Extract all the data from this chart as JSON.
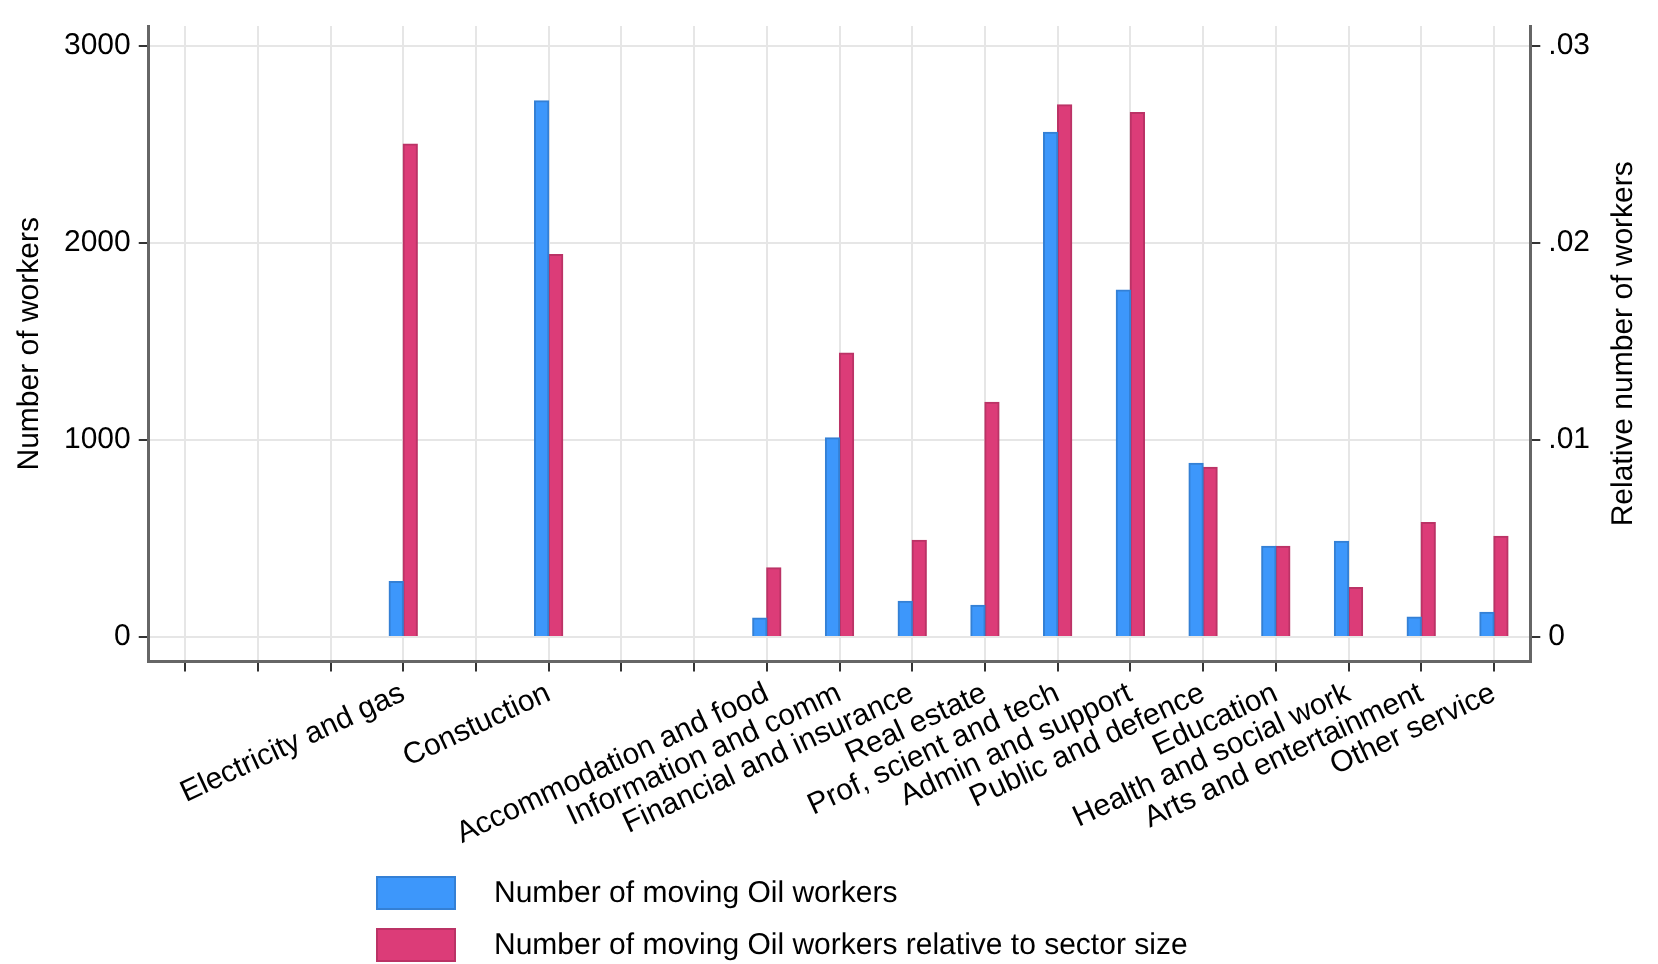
{
  "chart_data": {
    "type": "bar",
    "xlabel": null,
    "ylabel": "Number of workers",
    "y2label": "Relative number of workers",
    "categories": [
      null,
      null,
      null,
      "Electricity and gas",
      null,
      "Constuction",
      null,
      null,
      "Accommodation and food",
      "Information and comm",
      "Financial and insurance",
      "Real estate",
      "Prof, scient and tech",
      "Admin and support",
      "Public and defence",
      "Education",
      "Health and social work",
      "Arts and entertainment",
      "Other service"
    ],
    "series": [
      {
        "name": "Number of moving Oil workers",
        "color": "#3d97fb",
        "values": [
          null,
          null,
          null,
          280,
          null,
          2720,
          null,
          null,
          95,
          1010,
          180,
          160,
          2560,
          1760,
          880,
          460,
          485,
          100,
          125
        ]
      },
      {
        "name": "Number of moving Oil workers relative to sector size",
        "color": "#dc3c78",
        "axis": "y2",
        "values": [
          null,
          null,
          null,
          0.025,
          null,
          0.0194,
          null,
          null,
          0.0035,
          0.0144,
          0.0049,
          0.0119,
          0.027,
          0.0266,
          0.0086,
          0.0046,
          0.0025,
          0.0058,
          0.0051
        ]
      }
    ],
    "ylim": [
      -125,
      3100
    ],
    "yticks": [
      0,
      1000,
      2000,
      3000
    ],
    "y2lim": [
      -0.00125,
      0.031
    ],
    "y2ticks": [
      {
        "value": 0,
        "label": "0"
      },
      {
        "value": 0.01,
        "label": ".01"
      },
      {
        "value": 0.02,
        "label": ".02"
      },
      {
        "value": 0.03,
        "label": ".03"
      }
    ],
    "grid": true,
    "legend": "bottom"
  }
}
